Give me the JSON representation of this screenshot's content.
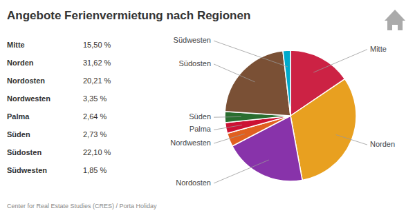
{
  "chart_data": {
    "type": "pie",
    "title": "Angebote Ferienvermietung nach Regionen",
    "subtitle": "Center for Real Estate Studies (CRES) / Porta Holiday",
    "categories": [
      "Mitte",
      "Norden",
      "Nordosten",
      "Nordwesten",
      "Palma",
      "Süden",
      "Südosten",
      "Südwesten"
    ],
    "values": [
      15.5,
      31.62,
      20.21,
      3.35,
      2.64,
      2.73,
      22.1,
      1.85
    ],
    "value_labels": [
      "15,50 %",
      "31,62 %",
      "20,21 %",
      "3,35 %",
      "2,64 %",
      "2,73 %",
      "22,10 %",
      "1,85 %"
    ],
    "colors": [
      "#cc2244",
      "#e8a020",
      "#8833aa",
      "#e06020",
      "#cc1133",
      "#2a6e30",
      "#7a5035",
      "#00aacc"
    ],
    "legend": "left"
  }
}
